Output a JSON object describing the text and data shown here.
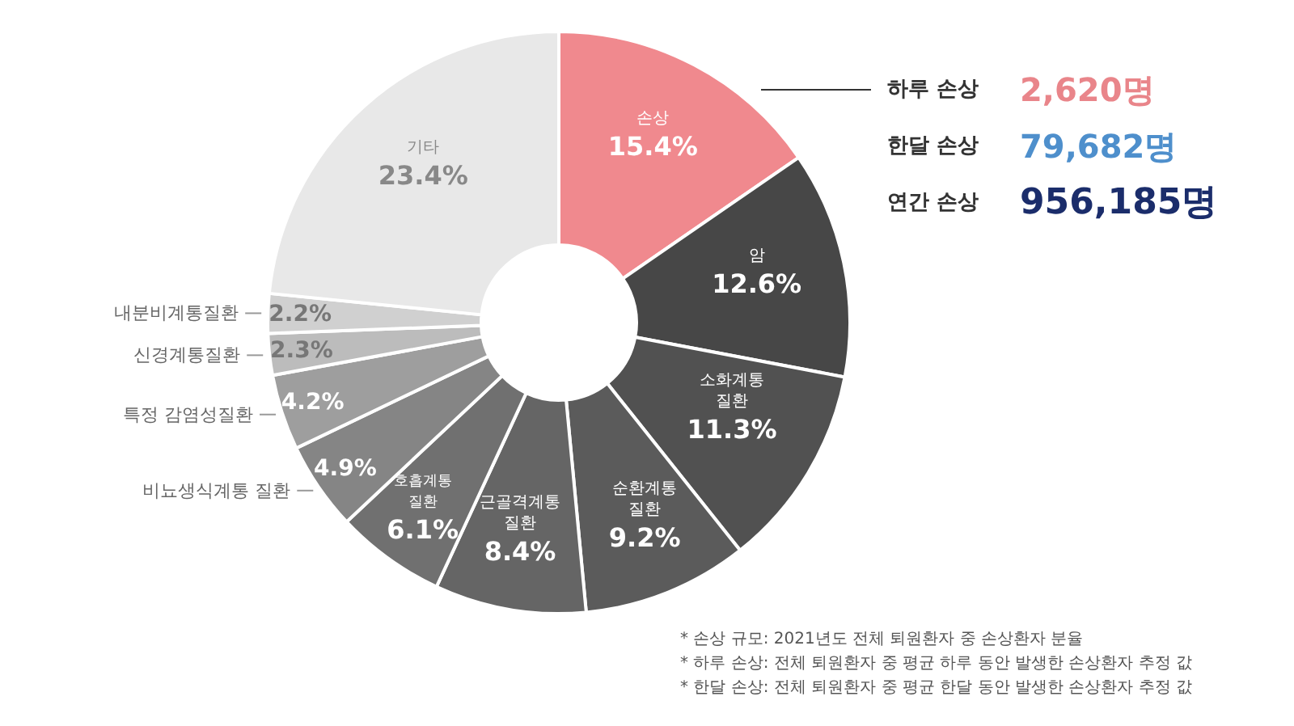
{
  "chart_data": {
    "type": "donut",
    "categories": [
      "손상",
      "암",
      "소화계통 질환",
      "순환계통 질환",
      "근골격계통 질환",
      "호흡계통 질환",
      "비뇨생식계통 질환",
      "특정 감염성질환",
      "신경계통질환",
      "내분비계통질환",
      "기타"
    ],
    "values": [
      15.4,
      12.6,
      11.3,
      9.2,
      8.4,
      6.1,
      4.9,
      4.2,
      2.3,
      2.2,
      23.4
    ],
    "value_labels": [
      "15.4%",
      "12.6%",
      "11.3%",
      "9.2%",
      "8.4%",
      "6.1%",
      "4.9%",
      "4.2%",
      "2.3%",
      "2.2%",
      "23.4%"
    ],
    "colors": [
      "#f0898e",
      "#474747",
      "#515151",
      "#5b5b5b",
      "#656565",
      "#707070",
      "#858585",
      "#9e9e9e",
      "#bcbcbc",
      "#d0d0d0",
      "#e8e8e8"
    ],
    "annotations": [
      "하루 손상 2,620명",
      "한달 손상 79,682명",
      "연간 손상 956,185명",
      "* 손상 규모: 2021년도 전체 퇴원환자 중 손상환자 분율",
      "* 하루 손상: 전체 퇴원환자 중 평균 하루 동안 발생한 손상환자 추정 값",
      "* 한달 손상: 전체 퇴원환자 중 평균 한달 동안 발생한 손상환자 추정 값"
    ]
  }
}
